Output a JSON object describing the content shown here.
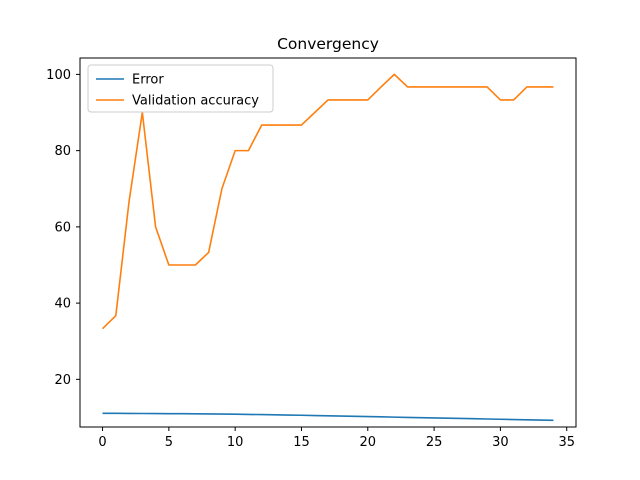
{
  "chart_data": {
    "type": "line",
    "title": "Convergency",
    "xlabel": "",
    "ylabel": "",
    "xlim": [
      -1.7,
      35.7
    ],
    "ylim": [
      7.5,
      104.3
    ],
    "xticks": [
      0,
      5,
      10,
      15,
      20,
      25,
      30,
      35
    ],
    "yticks": [
      20,
      40,
      60,
      80,
      100
    ],
    "grid": false,
    "legend_position": "top-left",
    "x": [
      0,
      1,
      2,
      3,
      4,
      5,
      6,
      7,
      8,
      9,
      10,
      11,
      12,
      13,
      14,
      15,
      16,
      17,
      18,
      19,
      20,
      21,
      22,
      23,
      24,
      25,
      26,
      27,
      28,
      29,
      30,
      31,
      32,
      33,
      34
    ],
    "series": [
      {
        "name": "Error",
        "color": "#1f77b4",
        "values": [
          11.1,
          11.08,
          11.06,
          11.04,
          11.02,
          11.0,
          10.98,
          10.95,
          10.92,
          10.89,
          10.85,
          10.8,
          10.75,
          10.7,
          10.64,
          10.58,
          10.51,
          10.44,
          10.37,
          10.3,
          10.23,
          10.16,
          10.09,
          10.02,
          9.95,
          9.88,
          9.81,
          9.74,
          9.67,
          9.6,
          9.53,
          9.46,
          9.39,
          9.32,
          9.25
        ]
      },
      {
        "name": "Validation accuracy",
        "color": "#ff7f0e",
        "values": [
          33.3,
          36.7,
          66.7,
          90.0,
          60.0,
          50.0,
          50.0,
          50.0,
          53.3,
          70.0,
          80.0,
          80.0,
          86.7,
          86.7,
          86.7,
          86.7,
          90.0,
          93.3,
          93.3,
          93.3,
          93.3,
          96.7,
          100.0,
          96.7,
          96.7,
          96.7,
          96.7,
          96.7,
          96.7,
          96.7,
          93.3,
          93.3,
          96.7,
          96.7,
          96.7
        ]
      }
    ]
  }
}
